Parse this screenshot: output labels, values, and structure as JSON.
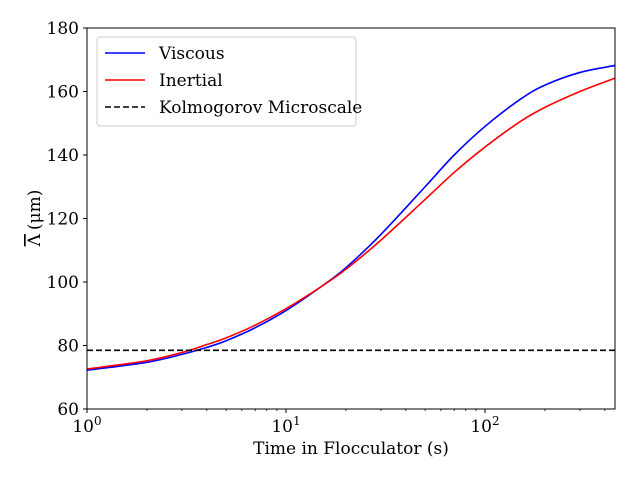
{
  "chart_data": {
    "type": "line",
    "title": "",
    "xlabel": "Time in Flocculator (s)",
    "ylabel_main": "Λ",
    "ylabel_unit": "(μm)",
    "xscale": "log",
    "xlim": [
      1,
      450
    ],
    "ylim": [
      60,
      180
    ],
    "yticks": [
      60,
      80,
      100,
      120,
      140,
      160,
      180
    ],
    "xticks": [
      {
        "value": 1,
        "base": "10",
        "exp": "0"
      },
      {
        "value": 10,
        "base": "10",
        "exp": "1"
      },
      {
        "value": 100,
        "base": "10",
        "exp": "2"
      }
    ],
    "grid": false,
    "legend_position": "upper-left",
    "series": [
      {
        "name": "Viscous",
        "color": "#0000ff",
        "style": "solid",
        "x": [
          1,
          2,
          3,
          4,
          5,
          7,
          10,
          15,
          20,
          30,
          50,
          70,
          100,
          150,
          200,
          300,
          450
        ],
        "y": [
          72.2,
          74.7,
          77.2,
          79.4,
          81.5,
          85.6,
          91.0,
          98.5,
          104.5,
          115.0,
          130.0,
          140.0,
          149.0,
          157.5,
          162.0,
          166.0,
          168.2
        ]
      },
      {
        "name": "Inertial",
        "color": "#ff0000",
        "style": "solid",
        "x": [
          1,
          2,
          3,
          4,
          5,
          7,
          10,
          15,
          20,
          30,
          50,
          70,
          100,
          150,
          200,
          300,
          450
        ],
        "y": [
          72.6,
          75.2,
          77.8,
          80.3,
          82.4,
          86.4,
          91.6,
          98.5,
          104.0,
          113.2,
          126.0,
          134.5,
          142.5,
          150.5,
          155.0,
          160.0,
          164.2
        ]
      },
      {
        "name": "Kolmogorov Microscale",
        "color": "#000000",
        "style": "dashed",
        "x": [
          1,
          450
        ],
        "y": [
          78.5,
          78.5
        ]
      }
    ]
  }
}
